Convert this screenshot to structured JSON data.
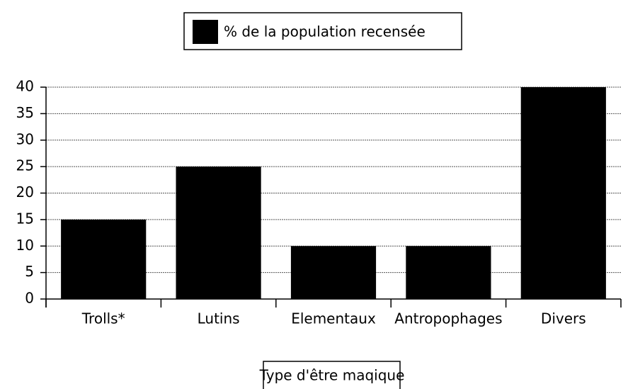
{
  "chart_data": {
    "type": "bar",
    "x_label": "Type d'être maqique",
    "categories": [
      "Trolls*",
      "Lutins",
      "Elementaux",
      "Antropophages",
      "Divers"
    ],
    "series": [
      {
        "name": "% de la population recensée",
        "color": "#000000",
        "values": [
          15,
          25,
          10,
          10,
          40
        ]
      }
    ],
    "ylim": [
      0,
      40
    ],
    "yticks": [
      0,
      5,
      10,
      15,
      20,
      25,
      30,
      35,
      40
    ],
    "grid": true,
    "legend": "top"
  }
}
